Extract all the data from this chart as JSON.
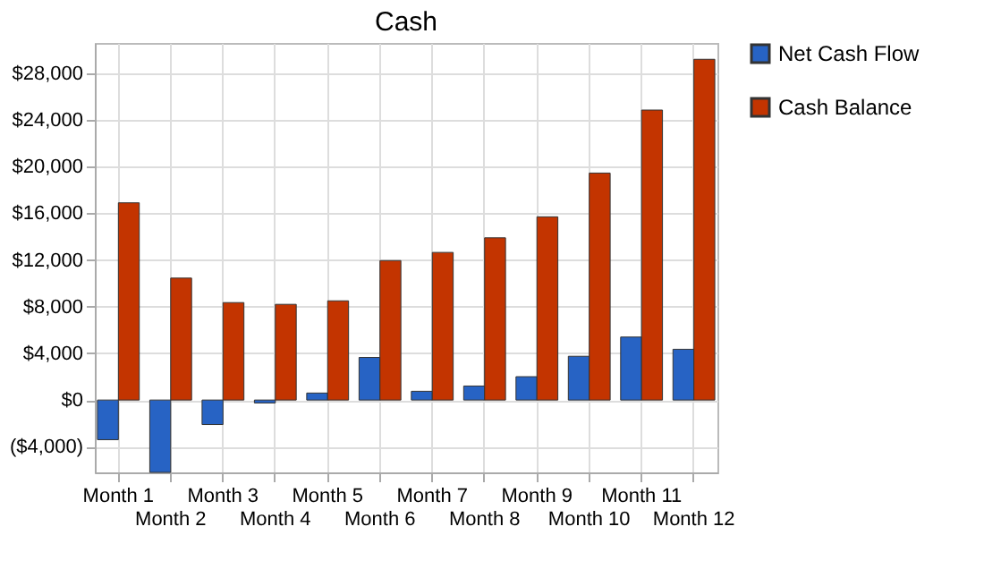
{
  "chart_data": {
    "type": "bar",
    "title": "Cash",
    "categories": [
      "Month 1",
      "Month 2",
      "Month 3",
      "Month 4",
      "Month 5",
      "Month 6",
      "Month 7",
      "Month 8",
      "Month 9",
      "Month 10",
      "Month 11",
      "Month 12"
    ],
    "series": [
      {
        "name": "Net Cash Flow",
        "color": "#2763c4",
        "values": [
          -3400,
          -6200,
          -2100,
          -250,
          600,
          3650,
          750,
          1200,
          2000,
          3750,
          5400,
          4350
        ]
      },
      {
        "name": "Cash Balance",
        "color": "#c33400",
        "values": [
          16900,
          10450,
          8350,
          8200,
          8500,
          11950,
          12650,
          13900,
          15700,
          19450,
          24850,
          29200
        ]
      }
    ],
    "ylim": [
      -6200,
      30600
    ],
    "yticks": [
      {
        "value": -4000,
        "label": "($4,000)"
      },
      {
        "value": 0,
        "label": "$0"
      },
      {
        "value": 4000,
        "label": "$4,000"
      },
      {
        "value": 8000,
        "label": "$8,000"
      },
      {
        "value": 12000,
        "label": "$12,000"
      },
      {
        "value": 16000,
        "label": "$16,000"
      },
      {
        "value": 20000,
        "label": "$20,000"
      },
      {
        "value": 24000,
        "label": "$24,000"
      },
      {
        "value": 28000,
        "label": "$28,000"
      }
    ],
    "grid": true,
    "legend": "right"
  }
}
